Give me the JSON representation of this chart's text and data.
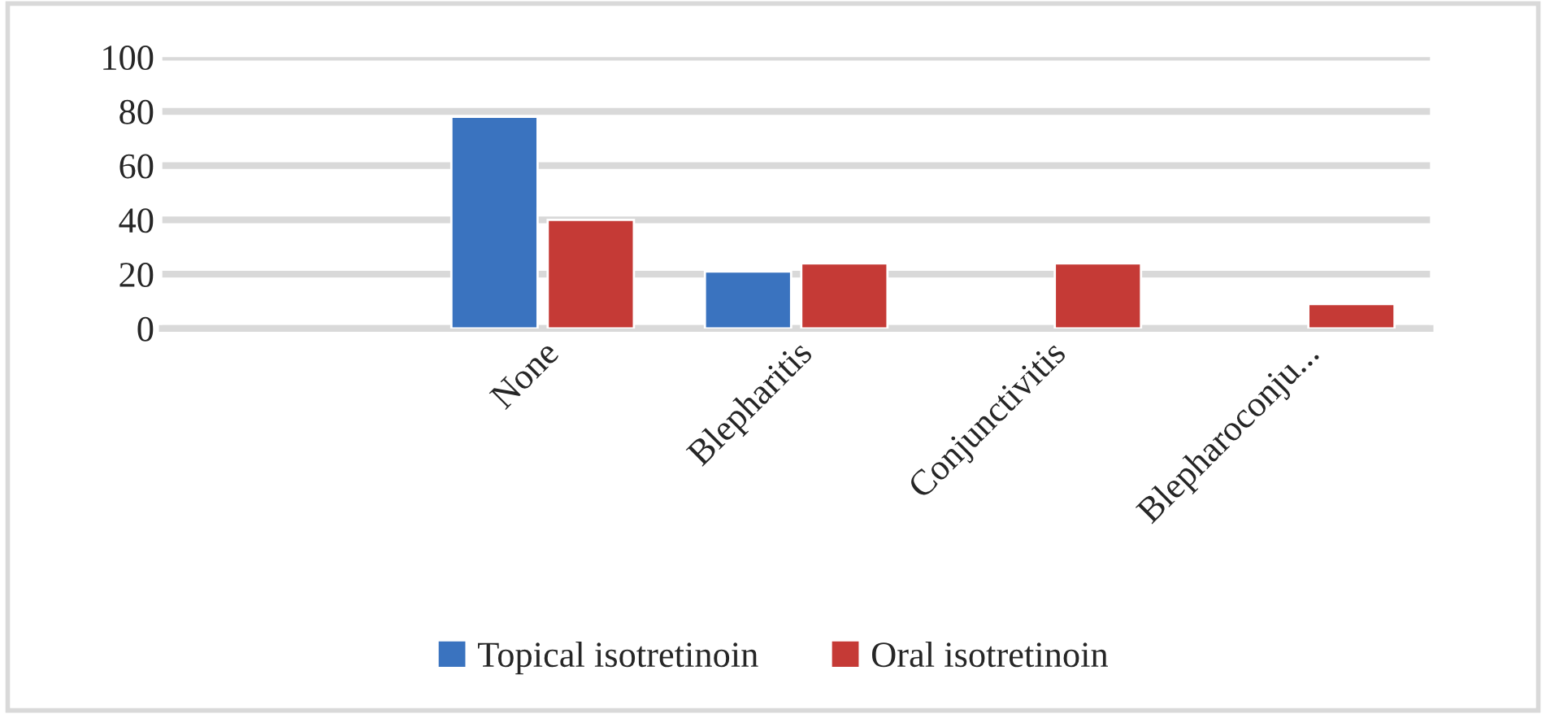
{
  "chart_data": {
    "type": "bar",
    "categories": [
      null,
      "None",
      "Blepharitis",
      "Conjunctivitis",
      "Blepharoconju..."
    ],
    "series": [
      {
        "name": "Topical isotretinoin",
        "color": "#3a73bf",
        "values": [
          null,
          78,
          21,
          null,
          null
        ]
      },
      {
        "name": "Oral isotretinoin",
        "color": "#c53a36",
        "values": [
          null,
          40,
          24,
          24,
          9
        ]
      }
    ],
    "ylim": [
      0,
      100
    ],
    "yticks": [
      0,
      20,
      40,
      60,
      80,
      100
    ],
    "grid": "y",
    "legend": "bottom"
  }
}
